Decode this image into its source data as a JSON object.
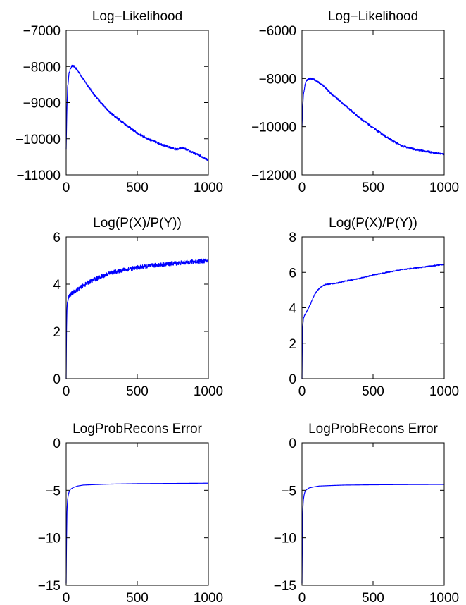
{
  "chart_data": [
    {
      "type": "line",
      "title": "Log−Likelihood",
      "xlim": [
        0,
        1000
      ],
      "ylim": [
        -11000,
        -7000
      ],
      "xticks": [
        0,
        500,
        1000
      ],
      "xtick_labels": [
        "0",
        "500",
        "1000"
      ],
      "yticks": [
        -11000,
        -10000,
        -9000,
        -8000,
        -7000
      ],
      "ytick_labels": [
        "−11000",
        "−10000",
        "−9000",
        "−8000",
        "−7000"
      ],
      "grid": false,
      "color": "#0000ff",
      "series": [
        {
          "x": [
            0,
            5,
            10,
            20,
            30,
            40,
            55,
            80,
            120,
            200,
            300,
            400,
            500,
            600,
            700,
            780,
            820,
            860,
            900,
            950,
            1000
          ],
          "y": [
            -10300,
            -9200,
            -8600,
            -8200,
            -8050,
            -7990,
            -8000,
            -8100,
            -8350,
            -8800,
            -9250,
            -9550,
            -9850,
            -10050,
            -10200,
            -10300,
            -10250,
            -10330,
            -10400,
            -10480,
            -10600
          ],
          "noise": 30
        }
      ]
    },
    {
      "type": "line",
      "title": "Log−Likelihood",
      "xlim": [
        0,
        1000
      ],
      "ylim": [
        -12000,
        -6000
      ],
      "xticks": [
        0,
        500,
        1000
      ],
      "xtick_labels": [
        "0",
        "500",
        "1000"
      ],
      "yticks": [
        -12000,
        -10000,
        -8000,
        -6000
      ],
      "ytick_labels": [
        "−12000",
        "−10000",
        "−8000",
        "−6000"
      ],
      "grid": false,
      "color": "#0000ff",
      "series": [
        {
          "x": [
            0,
            5,
            10,
            20,
            30,
            45,
            60,
            80,
            100,
            150,
            200,
            300,
            400,
            500,
            600,
            700,
            800,
            900,
            1000
          ],
          "y": [
            -10000,
            -9200,
            -8700,
            -8300,
            -8100,
            -8020,
            -8000,
            -8030,
            -8100,
            -8300,
            -8600,
            -9100,
            -9600,
            -10050,
            -10450,
            -10800,
            -10950,
            -11050,
            -11150
          ],
          "noise": 40
        }
      ]
    },
    {
      "type": "line",
      "title": "Log(P(X)/P(Y))",
      "xlim": [
        0,
        1000
      ],
      "ylim": [
        0,
        6
      ],
      "xticks": [
        0,
        500,
        1000
      ],
      "xtick_labels": [
        "0",
        "500",
        "1000"
      ],
      "yticks": [
        0,
        2,
        4,
        6
      ],
      "ytick_labels": [
        "0",
        "2",
        "4",
        "6"
      ],
      "grid": false,
      "color": "#0000ff",
      "series": [
        {
          "x": [
            0,
            3,
            6,
            10,
            20,
            40,
            60,
            100,
            150,
            200,
            300,
            400,
            500,
            600,
            700,
            800,
            900,
            1000
          ],
          "y": [
            0,
            2.2,
            3.0,
            3.3,
            3.5,
            3.6,
            3.7,
            3.85,
            4.05,
            4.2,
            4.45,
            4.6,
            4.7,
            4.78,
            4.85,
            4.9,
            4.95,
            5.0
          ],
          "noise": 0.09
        }
      ]
    },
    {
      "type": "line",
      "title": "Log(P(X)/P(Y))",
      "xlim": [
        0,
        1000
      ],
      "ylim": [
        0,
        8
      ],
      "xticks": [
        0,
        500,
        1000
      ],
      "xtick_labels": [
        "0",
        "500",
        "1000"
      ],
      "yticks": [
        0,
        2,
        4,
        6,
        8
      ],
      "ytick_labels": [
        "0",
        "2",
        "4",
        "6",
        "8"
      ],
      "grid": false,
      "color": "#0000ff",
      "series": [
        {
          "x": [
            0,
            3,
            6,
            10,
            20,
            40,
            60,
            80,
            100,
            130,
            160,
            200,
            250,
            300,
            400,
            500,
            600,
            700,
            800,
            900,
            1000
          ],
          "y": [
            0,
            2.4,
            3.0,
            3.4,
            3.6,
            3.9,
            4.2,
            4.6,
            4.9,
            5.15,
            5.3,
            5.35,
            5.4,
            5.5,
            5.65,
            5.85,
            6.0,
            6.15,
            6.25,
            6.35,
            6.45
          ],
          "noise": 0.03
        }
      ]
    },
    {
      "type": "line",
      "title": "LogProbRecons Error",
      "xlim": [
        0,
        1000
      ],
      "ylim": [
        -15,
        0
      ],
      "xticks": [
        0,
        500,
        1000
      ],
      "xtick_labels": [
        "0",
        "500",
        "1000"
      ],
      "yticks": [
        -15,
        -10,
        -5,
        0
      ],
      "ytick_labels": [
        "−15",
        "−10",
        "−5",
        "0"
      ],
      "grid": false,
      "color": "#0000ff",
      "series": [
        {
          "x": [
            0,
            3,
            6,
            10,
            15,
            20,
            30,
            50,
            80,
            120,
            200,
            300,
            500,
            700,
            1000
          ],
          "y": [
            -14.8,
            -10,
            -7,
            -6,
            -5.5,
            -5.2,
            -4.9,
            -4.7,
            -4.55,
            -4.45,
            -4.4,
            -4.35,
            -4.3,
            -4.28,
            -4.25
          ],
          "noise": 0
        }
      ]
    },
    {
      "type": "line",
      "title": "LogProbRecons Error",
      "xlim": [
        0,
        1000
      ],
      "ylim": [
        -15,
        0
      ],
      "xticks": [
        0,
        500,
        1000
      ],
      "xtick_labels": [
        "0",
        "500",
        "1000"
      ],
      "yticks": [
        -15,
        -10,
        -5,
        0
      ],
      "ytick_labels": [
        "−15",
        "−10",
        "−5",
        "0"
      ],
      "grid": false,
      "color": "#0000ff",
      "series": [
        {
          "x": [
            0,
            3,
            6,
            10,
            15,
            20,
            30,
            50,
            80,
            120,
            200,
            300,
            500,
            700,
            1000
          ],
          "y": [
            -14.8,
            -10,
            -7,
            -6,
            -5.5,
            -5.2,
            -4.95,
            -4.75,
            -4.65,
            -4.55,
            -4.5,
            -4.45,
            -4.42,
            -4.4,
            -4.38
          ],
          "noise": 0
        }
      ]
    }
  ]
}
